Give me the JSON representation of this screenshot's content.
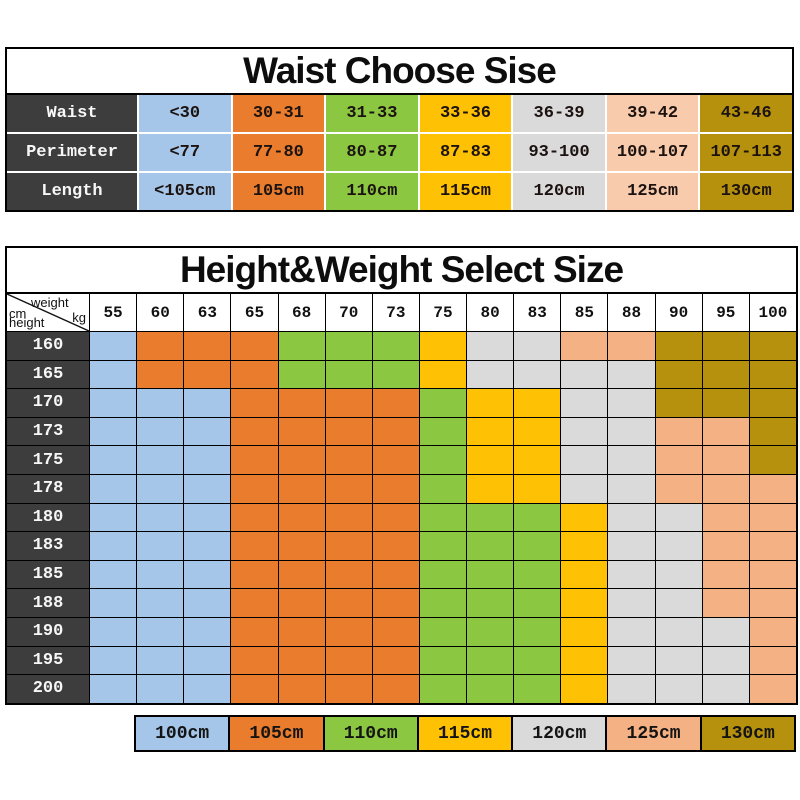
{
  "chart_data": [
    {
      "type": "table",
      "title": "Waist Choose Sise",
      "row_labels": [
        "Waist",
        "Perimeter",
        "Length"
      ],
      "rows": [
        [
          "<30",
          "30-31",
          "31-33",
          "33-36",
          "36-39",
          "39-42",
          "43-46"
        ],
        [
          "<77",
          "77-80",
          "80-87",
          "87-83",
          "93-100",
          "100-107",
          "107-113"
        ],
        [
          "<105cm",
          "105cm",
          "110cm",
          "115cm",
          "120cm",
          "125cm",
          "130cm"
        ]
      ],
      "column_color_codes": [
        "B",
        "O",
        "G",
        "Y",
        "S",
        "LP",
        "D"
      ]
    },
    {
      "type": "heatmap",
      "title": "Height&Weight Select Size",
      "corner": {
        "x_unit_top": "weight",
        "x_unit_bottom": "kg",
        "y_unit_top": "cm",
        "y_unit_bottom": "height"
      },
      "x": [
        "55",
        "60",
        "63",
        "65",
        "68",
        "70",
        "73",
        "75",
        "80",
        "83",
        "85",
        "88",
        "90",
        "95",
        "100"
      ],
      "y": [
        "160",
        "165",
        "170",
        "173",
        "175",
        "178",
        "180",
        "183",
        "185",
        "188",
        "190",
        "195",
        "200"
      ],
      "matrix_codes": [
        "BOOOGGGYSSPPDDD",
        "BOOOGGGYSSSSDDD",
        "BBBOOOOGYYSSDDD",
        "BBBOOOOGYYSSPPD",
        "BBBOOOOGYYSSPPD",
        "BBBOOOOGYYSSPPP",
        "BBBOOOOGGGYSSPP",
        "BBBOOOOGGGYSSPP",
        "BBBOOOOGGGYSSPP",
        "BBBOOOOGGGYSSPP",
        "BBBOOOOGGGYSSSP",
        "BBBOOOOGGGYSSSP",
        "BBBOOOOGGGYSSSP"
      ],
      "code_to_size": {
        "B": "100cm",
        "O": "105cm",
        "G": "110cm",
        "Y": "115cm",
        "S": "120cm",
        "P": "125cm",
        "D": "130cm",
        "LP": "125cm"
      }
    }
  ],
  "legend": {
    "items": [
      {
        "label": "100cm",
        "code": "B"
      },
      {
        "label": "105cm",
        "code": "O"
      },
      {
        "label": "110cm",
        "code": "G"
      },
      {
        "label": "115cm",
        "code": "Y"
      },
      {
        "label": "120cm",
        "code": "S"
      },
      {
        "label": "125cm",
        "code": "P"
      },
      {
        "label": "130cm",
        "code": "D"
      }
    ]
  },
  "colors": {
    "B": "#A5C6E9",
    "O": "#EA7C2D",
    "G": "#8BC740",
    "Y": "#FFC103",
    "S": "#DADADA",
    "P": "#F4B183",
    "LP": "#F8CBAD",
    "D": "#B6910D",
    "label_bg": "#3D3D3D",
    "grid_line": "#000000"
  }
}
